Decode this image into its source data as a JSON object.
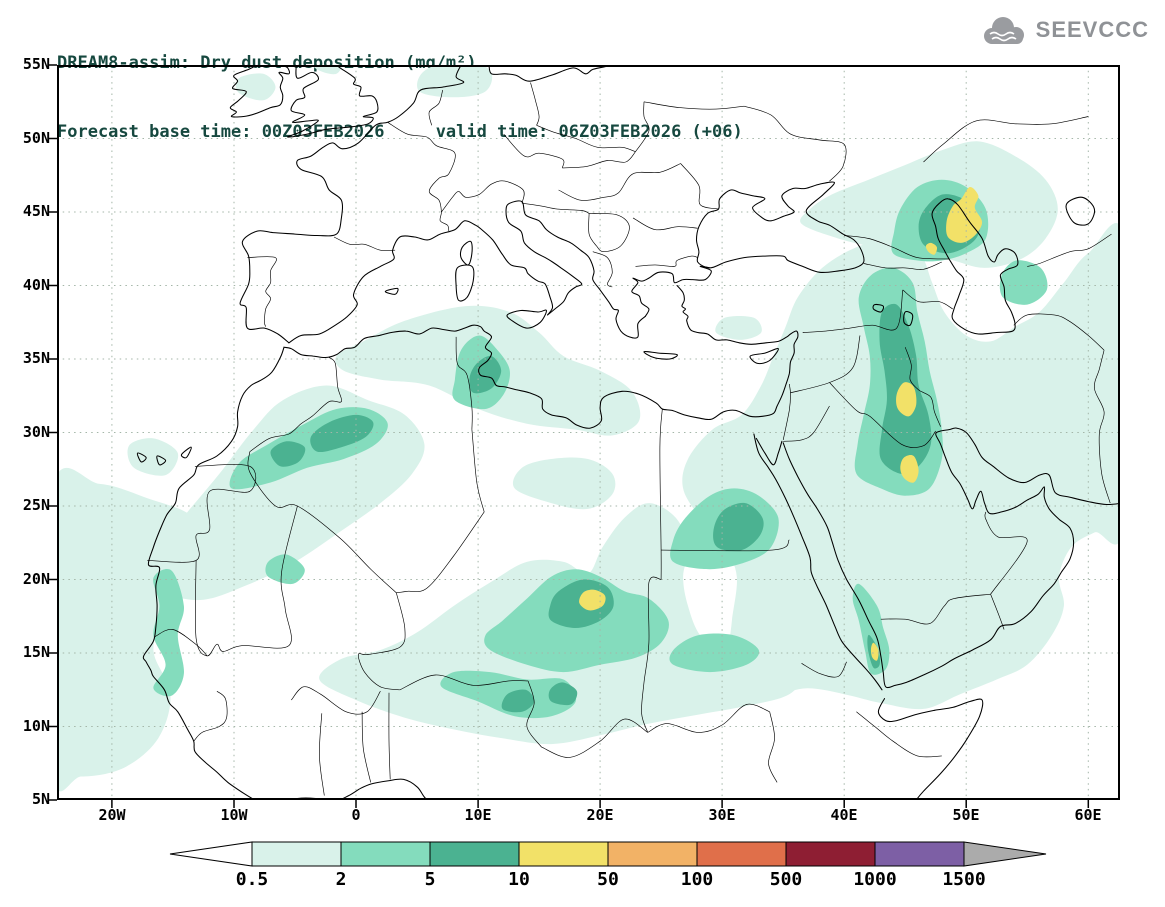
{
  "header": {
    "title_line1": "DREAM8-assim: Dry dust deposition (mg/m²)",
    "title_line2": "Forecast base time: 00Z03FEB2026     valid time: 06Z03FEB2026 (+06)"
  },
  "logo": {
    "text": "SEEVCCC"
  },
  "map": {
    "lat_labels": [
      "55N",
      "50N",
      "45N",
      "40N",
      "35N",
      "30N",
      "25N",
      "20N",
      "15N",
      "10N",
      "5N"
    ],
    "lon_labels": [
      "20W",
      "10W",
      "0",
      "10E",
      "20E",
      "30E",
      "40E",
      "50E",
      "60E"
    ]
  },
  "colorbar": {
    "tick_labels": [
      "0.5",
      "2",
      "5",
      "10",
      "50",
      "100",
      "500",
      "1000",
      "1500"
    ],
    "segment_colors": [
      "#ffffff",
      "#d9f2ea",
      "#84dcbd",
      "#4bb291",
      "#f2e168",
      "#f2b266",
      "#e06f4a",
      "#8e1e33",
      "#7d5fa5",
      "#ababab"
    ]
  }
}
